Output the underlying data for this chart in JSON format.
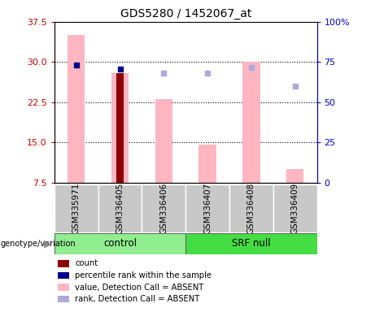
{
  "title": "GDS5280 / 1452067_at",
  "samples": [
    "GSM335971",
    "GSM336405",
    "GSM336406",
    "GSM336407",
    "GSM336408",
    "GSM336409"
  ],
  "ylim_left": [
    7.5,
    37.5
  ],
  "ylim_right": [
    0,
    100
  ],
  "yticks_left": [
    7.5,
    15.0,
    22.5,
    30.0,
    37.5
  ],
  "yticks_right": [
    0,
    25,
    50,
    75,
    100
  ],
  "pink_bar_values": [
    35.0,
    28.0,
    23.0,
    14.5,
    30.0,
    10.0
  ],
  "dark_red_bar_value": 28.0,
  "dark_red_bar_index": 1,
  "blue_square_data": [
    [
      0,
      29.5
    ],
    [
      1,
      28.7
    ]
  ],
  "light_blue_square_data": [
    [
      2,
      28.0
    ],
    [
      3,
      28.0
    ],
    [
      4,
      29.0
    ],
    [
      5,
      25.5
    ]
  ],
  "pink_bar_color": "#FFB6C1",
  "dark_red_bar_color": "#8B0000",
  "blue_square_color": "#00008B",
  "light_blue_square_color": "#AAAADD",
  "ctrl_color": "#90EE90",
  "srf_color": "#44DD44",
  "label_bg_color": "#C8C8C8",
  "left_axis_color": "#CC0000",
  "right_axis_color": "#0000CC",
  "bar_width": 0.4,
  "dark_bar_width": 0.15
}
